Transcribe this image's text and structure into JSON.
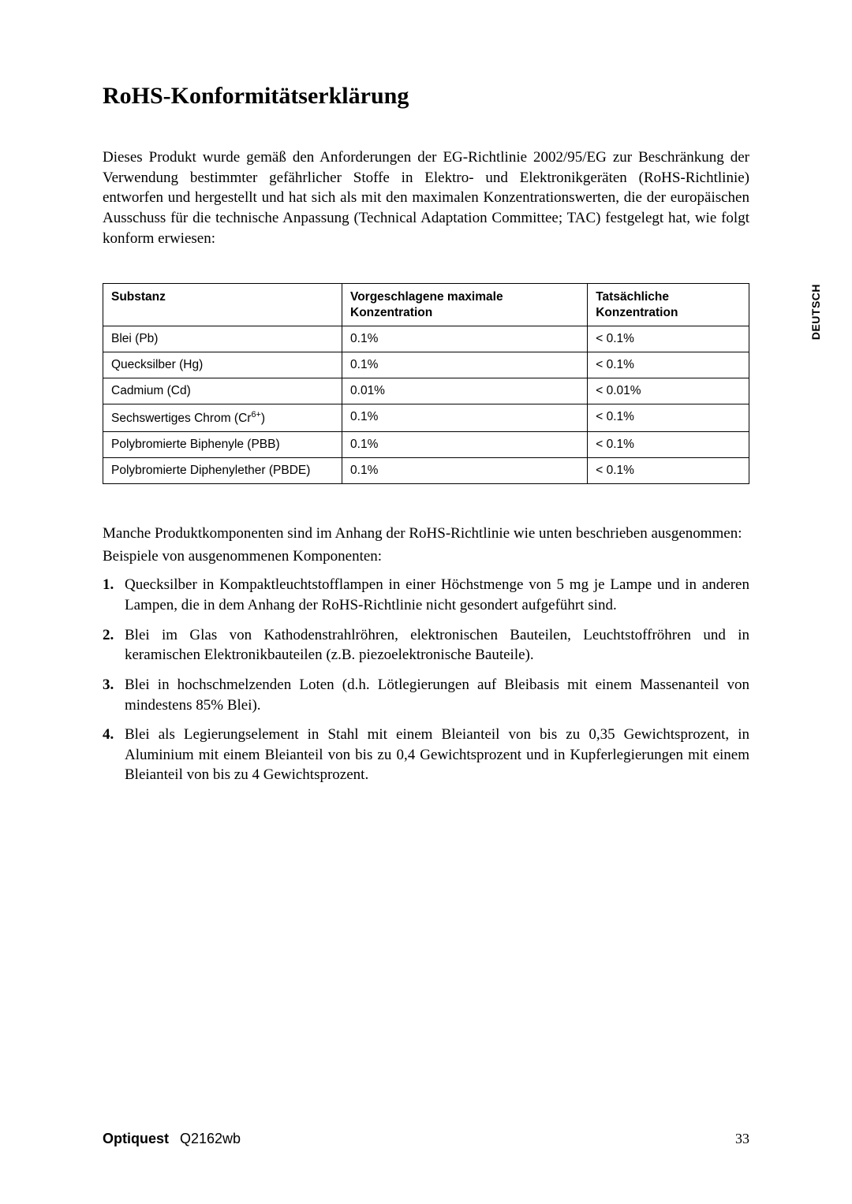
{
  "side_tab": "DEUTSCH",
  "title": "RoHS-Konformitätserklärung",
  "intro": "Dieses Produkt wurde gemäß den Anforderungen der EG-Richtlinie 2002/95/EG zur Beschränkung der Verwendung bestimmter gefährlicher Stoffe in Elektro- und Elektronikgeräten (RoHS-Richtlinie) entworfen und hergestellt und hat sich als mit den maximalen Konzentrationswerten, die der europäischen Ausschuss für die technische Anpassung (Technical Adaptation Committee; TAC) festgelegt hat, wie folgt konform erwiesen:",
  "table": {
    "headers": {
      "c1": "Substanz",
      "c2": "Vorgeschlagene maximale Konzentration",
      "c3": "Tatsächliche Konzentration"
    },
    "rows": [
      {
        "c1": "Blei (Pb)",
        "c2": "0.1%",
        "c3": "< 0.1%"
      },
      {
        "c1": "Quecksilber (Hg)",
        "c2": "0.1%",
        "c3": "< 0.1%"
      },
      {
        "c1": "Cadmium (Cd)",
        "c2": "0.01%",
        "c3": "< 0.01%"
      },
      {
        "c1_pre": "Sechswertiges Chrom (Cr",
        "c1_sup": "6+",
        "c1_post": ")",
        "c2": "0.1%",
        "c3": "< 0.1%"
      },
      {
        "c1": "Polybromierte Biphenyle (PBB)",
        "c2": "0.1%",
        "c3": "< 0.1%"
      },
      {
        "c1": "Polybromierte Diphenylether (PBDE)",
        "c2": "0.1%",
        "c3": "< 0.1%"
      }
    ]
  },
  "mid1": "Manche Produktkomponenten sind im Anhang der RoHS-Richtlinie wie unten beschrieben ausgenommen:",
  "mid2": "Beispiele von ausgenommenen Komponenten:",
  "list": [
    "Quecksilber in Kompaktleuchtstofflampen in einer Höchstmenge von 5 mg je Lampe und in anderen Lampen, die in dem Anhang der RoHS-Richtlinie nicht gesondert aufgeführt sind.",
    "Blei im Glas von Kathodenstrahlröhren, elektronischen Bauteilen, Leuchtstoffröhren und in keramischen Elektronikbauteilen (z.B. piezoelektronische Bauteile).",
    "Blei in hochschmelzenden Loten (d.h. Lötlegierungen auf Bleibasis mit einem Massenanteil von mindestens 85% Blei).",
    "Blei als Legierungselement in Stahl mit einem Bleianteil von bis zu 0,35 Gewichtsprozent, in Aluminium mit einem Bleianteil von bis zu 0,4 Gewichtsprozent und in Kupferlegierungen mit einem Bleianteil von bis zu 4 Gewichtsprozent."
  ],
  "footer": {
    "brand": "Optiquest",
    "model": "Q2162wb",
    "page": "33"
  }
}
